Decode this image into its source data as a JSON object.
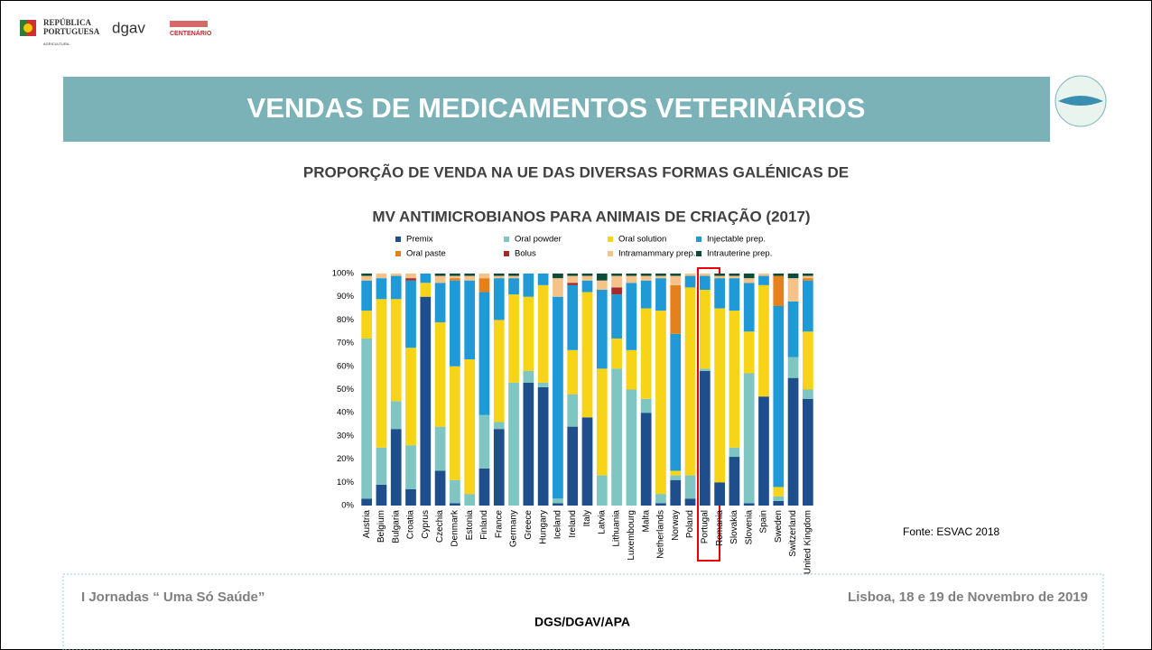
{
  "header": {
    "gov_line1": "REPÚBLICA",
    "gov_line2": "PORTUGUESA",
    "gov_line3": "AGRICULTURA",
    "dgav": "dgav",
    "centenario": "CENTENÁRIO"
  },
  "banner_title": "VENDAS DE MEDICAMENTOS VETERINÁRIOS",
  "chart_data": {
    "type": "stacked_bar",
    "title": [
      "PROPORÇÃO DE VENDA NA UE DAS DIVERSAS FORMAS GALÉNICAS DE",
      "MV ANTIMICROBIANOS PARA ANIMAIS DE CRIAÇÃO (2017)"
    ],
    "categories": [
      "Austria",
      "Belgium",
      "Bulgaria",
      "Croatia",
      "Cyprus",
      "Czechia",
      "Denmark",
      "Estonia",
      "Finland",
      "France",
      "Germany",
      "Greece",
      "Hungary",
      "Iceland",
      "Ireland",
      "Italy",
      "Latvia",
      "Lithuania",
      "Luxembourg",
      "Malta",
      "Netherlands",
      "Norway",
      "Poland",
      "Portugal",
      "Romania",
      "Slovakia",
      "Slovenia",
      "Spain",
      "Sweden",
      "Switzerland",
      "United Kingdom"
    ],
    "series": [
      {
        "name": "Premix",
        "color": "#1f4e8c",
        "values": [
          3,
          9,
          33,
          7,
          90,
          15,
          1,
          0,
          16,
          33,
          0,
          53,
          51,
          1,
          34,
          38,
          0,
          0,
          0,
          40,
          1,
          11,
          3,
          58,
          10,
          21,
          1,
          47,
          2,
          55,
          46
        ]
      },
      {
        "name": "Oral powder",
        "color": "#7fc5c1",
        "values": [
          69,
          16,
          12,
          19,
          0,
          19,
          10,
          5,
          23,
          3,
          53,
          5,
          2,
          2,
          14,
          0,
          13,
          59,
          50,
          6,
          4,
          2,
          10,
          1,
          0,
          4,
          56,
          0,
          2,
          9,
          4
        ]
      },
      {
        "name": "Oral solution",
        "color": "#f7d417",
        "values": [
          12,
          64,
          44,
          42,
          6,
          45,
          49,
          58,
          0,
          44,
          38,
          32,
          42,
          0,
          19,
          54,
          46,
          13,
          17,
          39,
          79,
          2,
          81,
          34,
          75,
          59,
          18,
          48,
          4,
          0,
          25
        ]
      },
      {
        "name": "Injectable prep.",
        "color": "#1f9ad6",
        "values": [
          13,
          9,
          10,
          29,
          4,
          17,
          37,
          34,
          53,
          18,
          7,
          10,
          5,
          87,
          28,
          5,
          34,
          19,
          29,
          12,
          14,
          59,
          5,
          6,
          13,
          14,
          21,
          4,
          78,
          24,
          22
        ]
      },
      {
        "name": "Oral paste",
        "color": "#e6801a",
        "values": [
          0,
          0,
          0,
          0,
          0,
          0,
          1,
          0,
          6,
          0,
          0,
          0,
          0,
          0,
          0,
          0,
          0,
          0,
          0,
          0,
          0,
          21,
          0,
          0,
          0,
          0,
          0,
          0,
          13,
          0,
          1
        ]
      },
      {
        "name": "Bolus",
        "color": "#a52a2a",
        "values": [
          0,
          0,
          0,
          1,
          0,
          0,
          0,
          0,
          0,
          0,
          0,
          0,
          0,
          0,
          1,
          0,
          0,
          3,
          0,
          0,
          0,
          0,
          0,
          0,
          0,
          0,
          0,
          0,
          0,
          0,
          0
        ]
      },
      {
        "name": "Intramammary prep.",
        "color": "#f5c38a",
        "values": [
          2,
          2,
          1,
          2,
          0,
          3,
          1,
          2,
          2,
          1,
          1,
          0,
          0,
          8,
          3,
          2,
          4,
          5,
          3,
          2,
          1,
          4,
          1,
          1,
          1,
          1,
          2,
          1,
          0,
          10,
          1
        ]
      },
      {
        "name": "Intrauterine prep.",
        "color": "#0b4d3a",
        "values": [
          1,
          0,
          0,
          0,
          0,
          1,
          1,
          1,
          0,
          1,
          1,
          0,
          0,
          2,
          1,
          1,
          3,
          1,
          1,
          1,
          1,
          1,
          0,
          0,
          1,
          1,
          2,
          0,
          1,
          2,
          1
        ]
      }
    ],
    "ylim": [
      0,
      100
    ],
    "yticks": [
      {
        "value": 0,
        "label": "0%"
      },
      {
        "value": 10,
        "label": "10%"
      },
      {
        "value": 20,
        "label": "20%"
      },
      {
        "value": 30,
        "label": "30%"
      },
      {
        "value": 40,
        "label": "40%"
      },
      {
        "value": 50,
        "label": "50%"
      },
      {
        "value": 60,
        "label": "60%"
      },
      {
        "value": 70,
        "label": "70%"
      },
      {
        "value": 80,
        "label": "80%"
      },
      {
        "value": 90,
        "label": "90%"
      },
      {
        "value": 100,
        "label": "100%"
      }
    ],
    "grid": false,
    "legend": "top"
  },
  "source": "Fonte: ESVAC 2018",
  "footer": {
    "event": "I Jornadas “ Uma Só Saúde”",
    "place": "Lisboa, 18 e 19 de Novembro de 2019",
    "orgs": "DGS/DGAV/APA"
  }
}
